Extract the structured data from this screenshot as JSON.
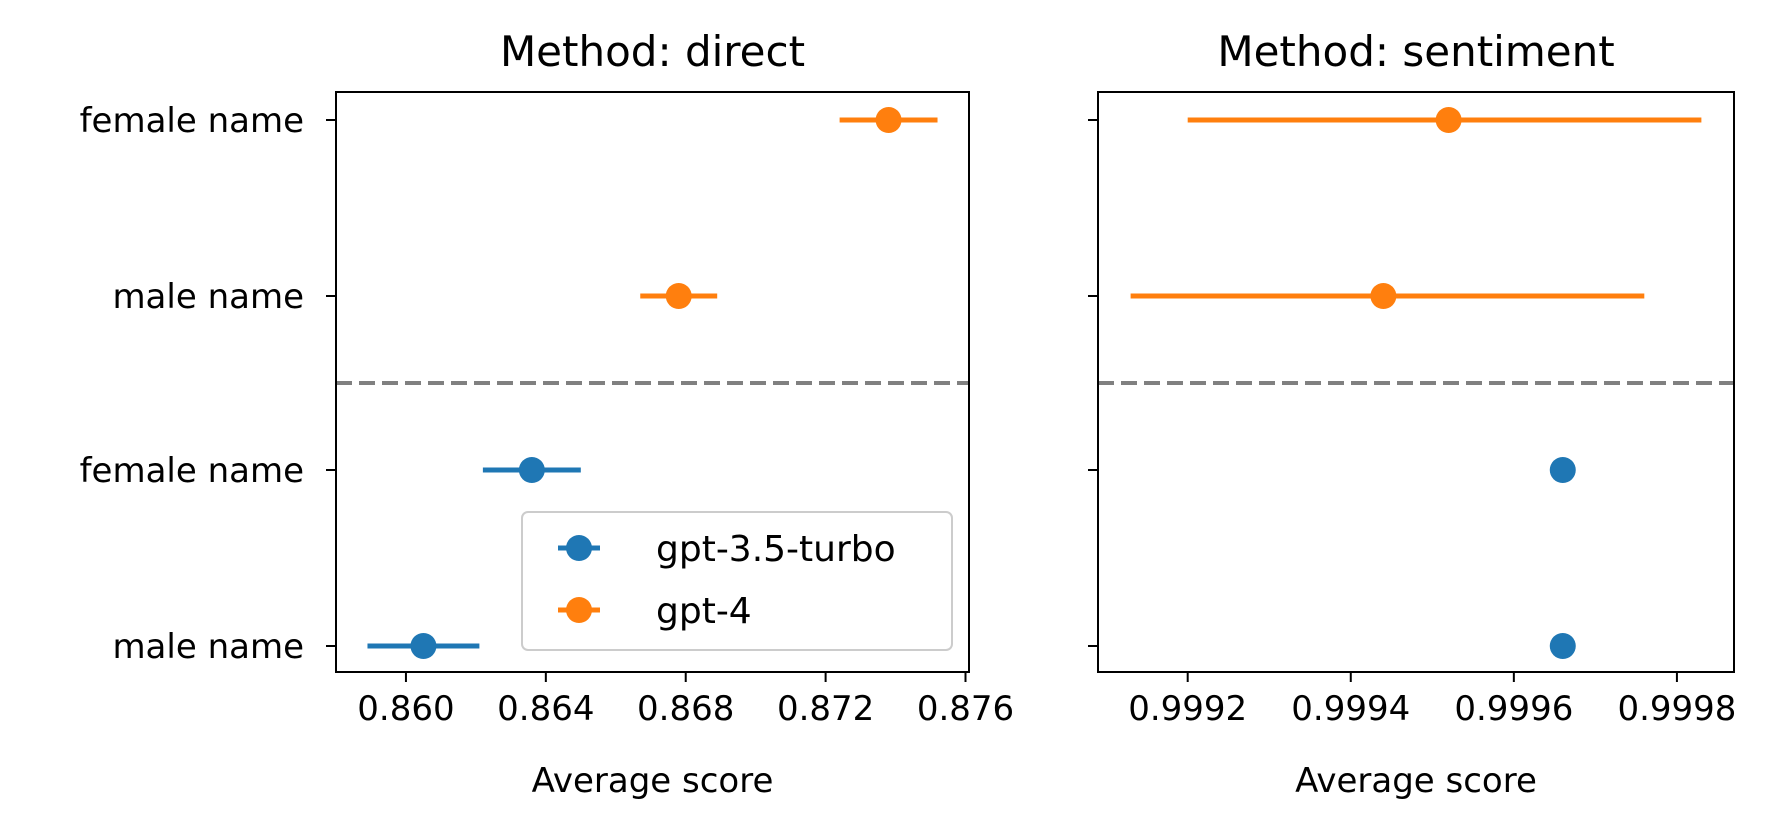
{
  "chart_data": [
    {
      "type": "scatter",
      "title": "Method: direct",
      "xlabel": "Average score",
      "ylabel": "",
      "xlim": [
        0.858,
        0.8761
      ],
      "x_ticks": [
        0.86,
        0.864,
        0.868,
        0.872,
        0.876
      ],
      "x_tick_labels": [
        "0.860",
        "0.864",
        "0.868",
        "0.872",
        "0.876"
      ],
      "y_categories": [
        "female name",
        "male name",
        "female name",
        "male name"
      ],
      "separator": "dashed line between upper and lower groups",
      "series": [
        {
          "name": "gpt-3.5-turbo",
          "color": "#1f77b4",
          "points": [
            {
              "category_index": 2,
              "label": "female name",
              "x": 0.8636,
              "err_low": 0.8622,
              "err_high": 0.865
            },
            {
              "category_index": 3,
              "label": "male name",
              "x": 0.8605,
              "err_low": 0.8589,
              "err_high": 0.8621
            }
          ]
        },
        {
          "name": "gpt-4",
          "color": "#ff7f0e",
          "points": [
            {
              "category_index": 0,
              "label": "female name",
              "x": 0.8738,
              "err_low": 0.8724,
              "err_high": 0.8752
            },
            {
              "category_index": 1,
              "label": "male name",
              "x": 0.8678,
              "err_low": 0.8667,
              "err_high": 0.8689
            }
          ]
        }
      ],
      "legend": {
        "placement": "lower-right"
      }
    },
    {
      "type": "scatter",
      "title": "Method: sentiment",
      "xlabel": "Average score",
      "ylabel": "",
      "xlim": [
        0.99909,
        0.99987
      ],
      "x_ticks": [
        0.9992,
        0.9994,
        0.9996,
        0.9998
      ],
      "x_tick_labels": [
        "0.9992",
        "0.9994",
        "0.9996",
        "0.9998"
      ],
      "y_categories": [
        "female name",
        "male name",
        "female name",
        "male name"
      ],
      "separator": "dashed line between upper and lower groups",
      "series": [
        {
          "name": "gpt-3.5-turbo",
          "color": "#1f77b4",
          "points": [
            {
              "category_index": 2,
              "label": "female name",
              "x": 0.99966,
              "err_low": 0.99966,
              "err_high": 0.99966
            },
            {
              "category_index": 3,
              "label": "male name",
              "x": 0.99966,
              "err_low": 0.99966,
              "err_high": 0.99966
            }
          ]
        },
        {
          "name": "gpt-4",
          "color": "#ff7f0e",
          "points": [
            {
              "category_index": 0,
              "label": "female name",
              "x": 0.99952,
              "err_low": 0.9992,
              "err_high": 0.99983
            },
            {
              "category_index": 1,
              "label": "male name",
              "x": 0.99944,
              "err_low": 0.99913,
              "err_high": 0.99976
            }
          ]
        }
      ]
    }
  ]
}
